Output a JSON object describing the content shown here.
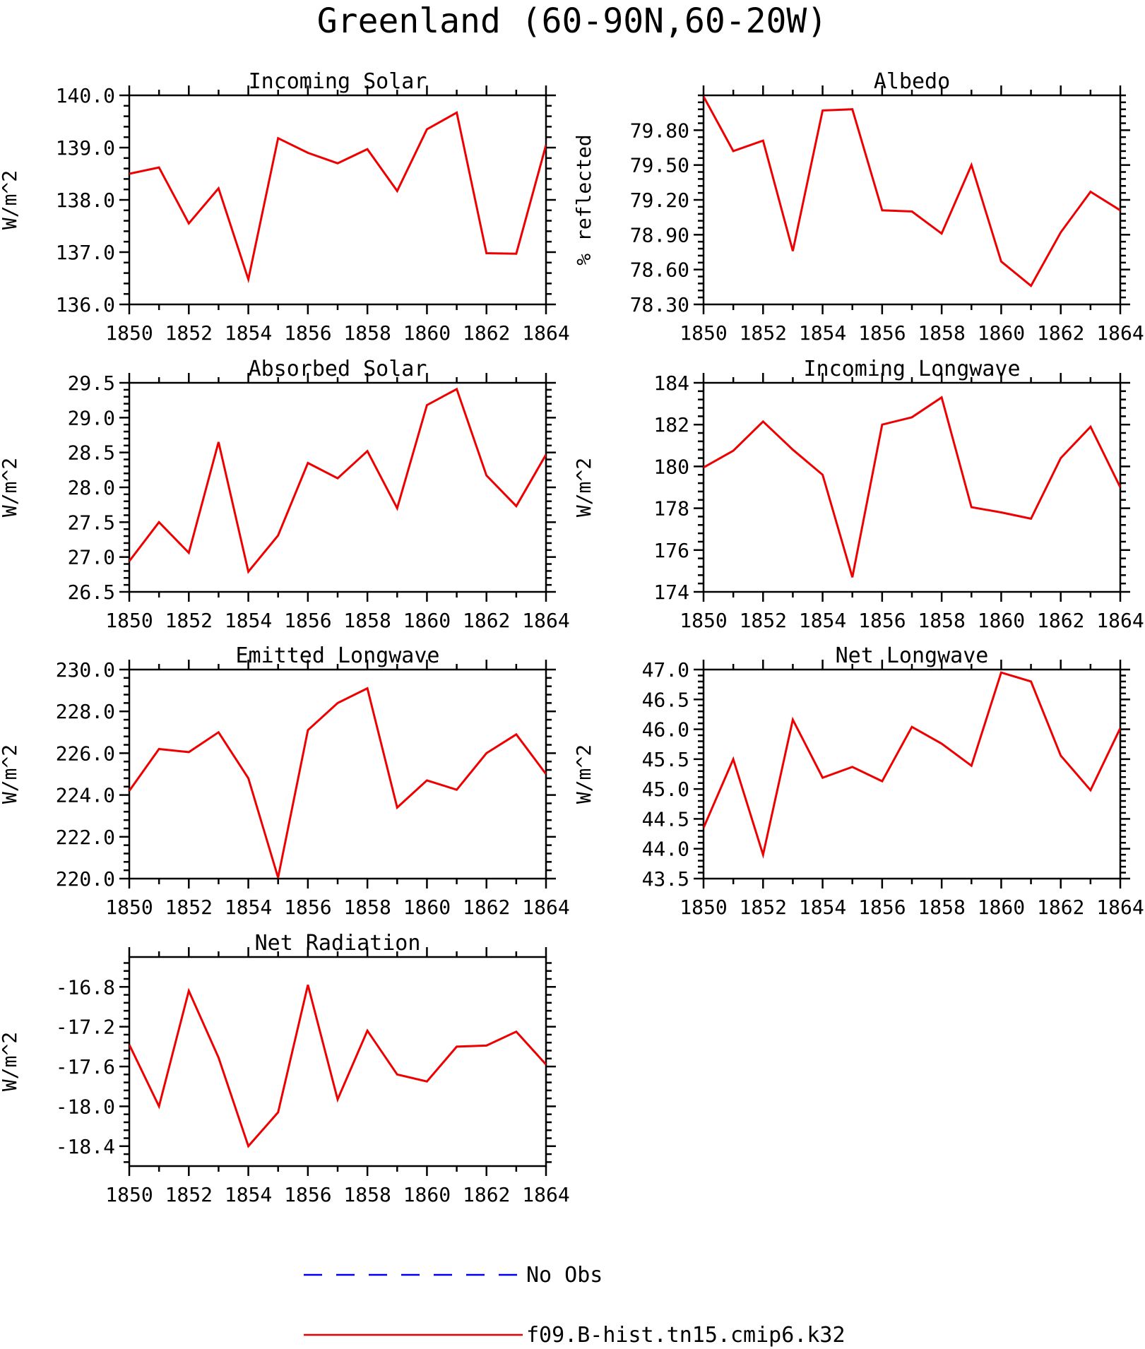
{
  "figure": {
    "suptitle": "Greenland (60-90N,60-20W)"
  },
  "legend": {
    "items": [
      {
        "label": "No Obs",
        "color": "#0000ee",
        "style": "dashed"
      },
      {
        "label": "f09.B-hist.tn15.cmip6.k32",
        "color": "#ee0000",
        "style": "solid"
      }
    ]
  },
  "chart_data": [
    {
      "type": "line",
      "title": "Incoming Solar",
      "ylabel": "W/m^2",
      "xlim": [
        1850,
        1864
      ],
      "ylim": [
        136.0,
        140.0
      ],
      "xticks": [
        1850,
        1852,
        1854,
        1856,
        1858,
        1860,
        1862,
        1864
      ],
      "yticks": [
        "136.0",
        "137.0",
        "138.0",
        "139.0",
        "140.0"
      ],
      "x": [
        1850,
        1851,
        1852,
        1853,
        1854,
        1855,
        1856,
        1857,
        1858,
        1859,
        1860,
        1861,
        1862,
        1863,
        1864
      ],
      "values": [
        138.5,
        138.62,
        137.55,
        138.22,
        136.48,
        139.18,
        138.9,
        138.7,
        138.97,
        138.17,
        139.35,
        139.67,
        136.98,
        136.97,
        139.05
      ]
    },
    {
      "type": "line",
      "title": "Albedo",
      "ylabel": "% reflected",
      "xlim": [
        1850,
        1864
      ],
      "ylim": [
        78.3,
        80.1
      ],
      "xticks": [
        1850,
        1852,
        1854,
        1856,
        1858,
        1860,
        1862,
        1864
      ],
      "yticks": [
        "78.30",
        "78.60",
        "78.90",
        "79.20",
        "79.50",
        "79.80"
      ],
      "x": [
        1850,
        1851,
        1852,
        1853,
        1854,
        1855,
        1856,
        1857,
        1858,
        1859,
        1860,
        1861,
        1862,
        1863,
        1864
      ],
      "values": [
        80.09,
        79.62,
        79.71,
        78.76,
        79.97,
        79.98,
        79.11,
        79.1,
        78.91,
        79.5,
        78.67,
        78.46,
        78.92,
        79.27,
        79.11
      ]
    },
    {
      "type": "line",
      "title": "Absorbed Solar",
      "ylabel": "W/m^2",
      "xlim": [
        1850,
        1864
      ],
      "ylim": [
        26.5,
        29.5
      ],
      "xticks": [
        1850,
        1852,
        1854,
        1856,
        1858,
        1860,
        1862,
        1864
      ],
      "yticks": [
        "26.5",
        "27.0",
        "27.5",
        "28.0",
        "28.5",
        "29.0",
        "29.5"
      ],
      "x": [
        1850,
        1851,
        1852,
        1853,
        1854,
        1855,
        1856,
        1857,
        1858,
        1859,
        1860,
        1861,
        1862,
        1863,
        1864
      ],
      "values": [
        26.94,
        27.5,
        27.06,
        28.65,
        26.79,
        27.31,
        28.35,
        28.13,
        28.52,
        27.7,
        29.18,
        29.41,
        28.17,
        27.73,
        28.47
      ]
    },
    {
      "type": "line",
      "title": "Incoming Longwave",
      "ylabel": "W/m^2",
      "xlim": [
        1850,
        1864
      ],
      "ylim": [
        174,
        184
      ],
      "xticks": [
        1850,
        1852,
        1854,
        1856,
        1858,
        1860,
        1862,
        1864
      ],
      "yticks": [
        "174",
        "176",
        "178",
        "180",
        "182",
        "184"
      ],
      "x": [
        1850,
        1851,
        1852,
        1853,
        1854,
        1855,
        1856,
        1857,
        1858,
        1859,
        1860,
        1861,
        1862,
        1863,
        1864
      ],
      "values": [
        179.95,
        180.75,
        182.15,
        180.8,
        179.6,
        174.7,
        182.0,
        182.35,
        183.3,
        178.05,
        177.8,
        177.5,
        180.4,
        181.9,
        179.0
      ]
    },
    {
      "type": "line",
      "title": "Emitted Longwave",
      "ylabel": "W/m^2",
      "xlim": [
        1850,
        1864
      ],
      "ylim": [
        220.0,
        230.0
      ],
      "xticks": [
        1850,
        1852,
        1854,
        1856,
        1858,
        1860,
        1862,
        1864
      ],
      "yticks": [
        "220.0",
        "222.0",
        "224.0",
        "226.0",
        "228.0",
        "230.0"
      ],
      "x": [
        1850,
        1851,
        1852,
        1853,
        1854,
        1855,
        1856,
        1857,
        1858,
        1859,
        1860,
        1861,
        1862,
        1863,
        1864
      ],
      "values": [
        224.2,
        226.2,
        226.05,
        227.0,
        224.8,
        220.05,
        227.1,
        228.4,
        229.1,
        223.4,
        224.7,
        224.25,
        226.0,
        226.9,
        225.0
      ]
    },
    {
      "type": "line",
      "title": "Net Longwave",
      "ylabel": "W/m^2",
      "xlim": [
        1850,
        1864
      ],
      "ylim": [
        43.5,
        47.0
      ],
      "xticks": [
        1850,
        1852,
        1854,
        1856,
        1858,
        1860,
        1862,
        1864
      ],
      "yticks": [
        "43.5",
        "44.0",
        "44.5",
        "45.0",
        "45.5",
        "46.0",
        "46.5",
        "47.0"
      ],
      "x": [
        1850,
        1851,
        1852,
        1853,
        1854,
        1855,
        1856,
        1857,
        1858,
        1859,
        1860,
        1861,
        1862,
        1863,
        1864
      ],
      "values": [
        44.35,
        45.5,
        43.9,
        46.16,
        45.19,
        45.37,
        45.13,
        46.04,
        45.76,
        45.39,
        46.95,
        46.8,
        45.56,
        44.98,
        46.02
      ]
    },
    {
      "type": "line",
      "title": "Net Radiation",
      "ylabel": "W/m^2",
      "xlim": [
        1850,
        1864
      ],
      "ylim": [
        -18.6,
        -16.5
      ],
      "xticks": [
        1850,
        1852,
        1854,
        1856,
        1858,
        1860,
        1862,
        1864
      ],
      "yticks": [
        "-18.4",
        "-18.0",
        "-17.6",
        "-17.2",
        "-16.8"
      ],
      "x": [
        1850,
        1851,
        1852,
        1853,
        1854,
        1855,
        1856,
        1857,
        1858,
        1859,
        1860,
        1861,
        1862,
        1863,
        1864
      ],
      "values": [
        -17.38,
        -18.0,
        -16.84,
        -17.51,
        -18.4,
        -18.06,
        -16.78,
        -17.93,
        -17.24,
        -17.68,
        -17.75,
        -17.4,
        -17.39,
        -17.25,
        -17.58
      ]
    }
  ]
}
